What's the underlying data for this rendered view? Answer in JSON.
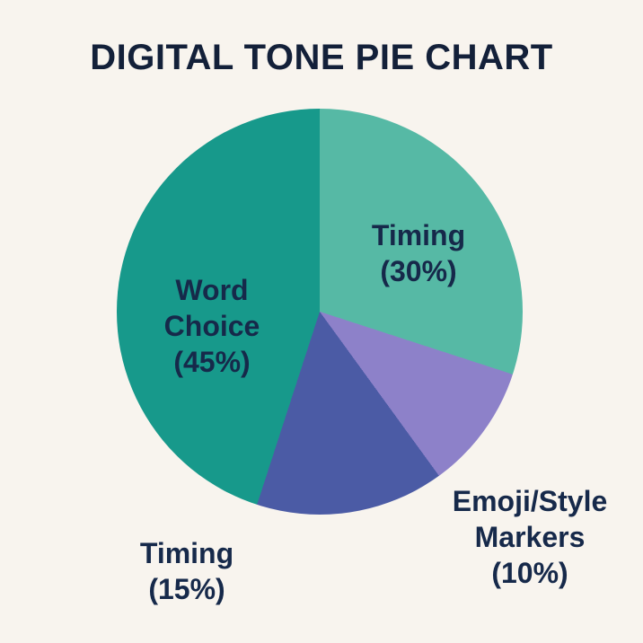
{
  "page": {
    "background_color": "#f8f4ee"
  },
  "chart_data": {
    "type": "pie",
    "title": "DIGITAL TONE PIE CHART",
    "start_angle_deg": 0,
    "direction": "clockwise",
    "total_pct": 100,
    "legend": "none (labels placed on/near slices)",
    "slices": [
      {
        "name": "Timing",
        "value_pct": 30,
        "color": "#56b9a5",
        "label_lines": [
          "Timing",
          "(30%)"
        ],
        "label_position": "inside-upper-right"
      },
      {
        "name": "Emoji/Style Markers",
        "value_pct": 10,
        "color": "#8d81c9",
        "label_lines": [
          "Emoji/Style",
          "Markers",
          "(10%)"
        ],
        "label_position": "outside-lower-right"
      },
      {
        "name": "Timing",
        "value_pct": 15,
        "color": "#4b5ba5",
        "label_lines": [
          "Timing",
          "(15%)"
        ],
        "label_position": "outside-lower-left"
      },
      {
        "name": "Word Choice",
        "value_pct": 45,
        "color": "#17998b",
        "label_lines": [
          "Word",
          "Choice",
          "(45%)"
        ],
        "label_position": "inside-left"
      }
    ],
    "colors": {
      "background": "#f8f4ee",
      "title_text": "#132039",
      "label_text": "#16294a"
    }
  }
}
